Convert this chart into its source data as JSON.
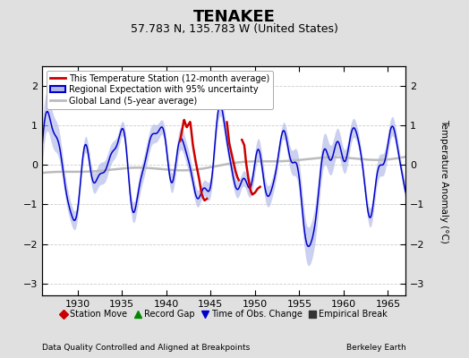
{
  "title": "TENAKEE",
  "subtitle": "57.783 N, 135.783 W (United States)",
  "ylabel": "Temperature Anomaly (°C)",
  "xlabel_left": "Data Quality Controlled and Aligned at Breakpoints",
  "xlabel_right": "Berkeley Earth",
  "xlim": [
    1926,
    1967
  ],
  "ylim": [
    -3.3,
    2.5
  ],
  "yticks": [
    -3,
    -2,
    -1,
    0,
    1,
    2
  ],
  "xticks": [
    1930,
    1935,
    1940,
    1945,
    1950,
    1955,
    1960,
    1965
  ],
  "bg_color": "#e0e0e0",
  "plot_bg_color": "#ffffff",
  "grid_color": "#cccccc",
  "blue_line_color": "#0000cc",
  "blue_fill_color": "#b0b8e8",
  "red_line_color": "#cc0000",
  "gray_line_color": "#bbbbbb",
  "title_fontsize": 13,
  "subtitle_fontsize": 9,
  "legend_top_items": [
    {
      "label": "This Temperature Station (12-month average)",
      "color": "#cc0000",
      "lw": 2
    },
    {
      "label": "Regional Expectation with 95% uncertainty",
      "color": "#0000cc",
      "lw": 1.5,
      "fill": "#b0b8e8"
    },
    {
      "label": "Global Land (5-year average)",
      "color": "#bbbbbb",
      "lw": 2
    }
  ],
  "legend_bottom_items": [
    {
      "label": "Station Move",
      "marker": "D",
      "color": "#cc0000"
    },
    {
      "label": "Record Gap",
      "marker": "^",
      "color": "#008800"
    },
    {
      "label": "Time of Obs. Change",
      "marker": "v",
      "color": "#0000cc"
    },
    {
      "label": "Empirical Break",
      "marker": "s",
      "color": "#333333"
    }
  ],
  "red_seg1_x": [
    1941.5,
    1942.0,
    1942.3,
    1942.7,
    1943.0,
    1943.3,
    1943.7,
    1944.0,
    1944.3,
    1944.6
  ],
  "red_seg1_y": [
    0.55,
    1.15,
    0.95,
    1.1,
    0.5,
    0.1,
    -0.35,
    -0.75,
    -0.9,
    -0.85
  ],
  "red_seg2_x": [
    1946.8,
    1947.1,
    1947.4,
    1947.6,
    1947.8,
    1948.0,
    1948.2
  ],
  "red_seg2_y": [
    1.15,
    0.55,
    0.25,
    0.05,
    -0.15,
    -0.3,
    -0.4
  ],
  "red_seg3_x": [
    1948.5,
    1948.8,
    1949.0,
    1949.3,
    1949.5,
    1949.7,
    1950.0,
    1950.3,
    1950.6
  ],
  "red_seg3_y": [
    0.65,
    0.5,
    0.05,
    -0.4,
    -0.65,
    -0.75,
    -0.7,
    -0.6,
    -0.55
  ]
}
